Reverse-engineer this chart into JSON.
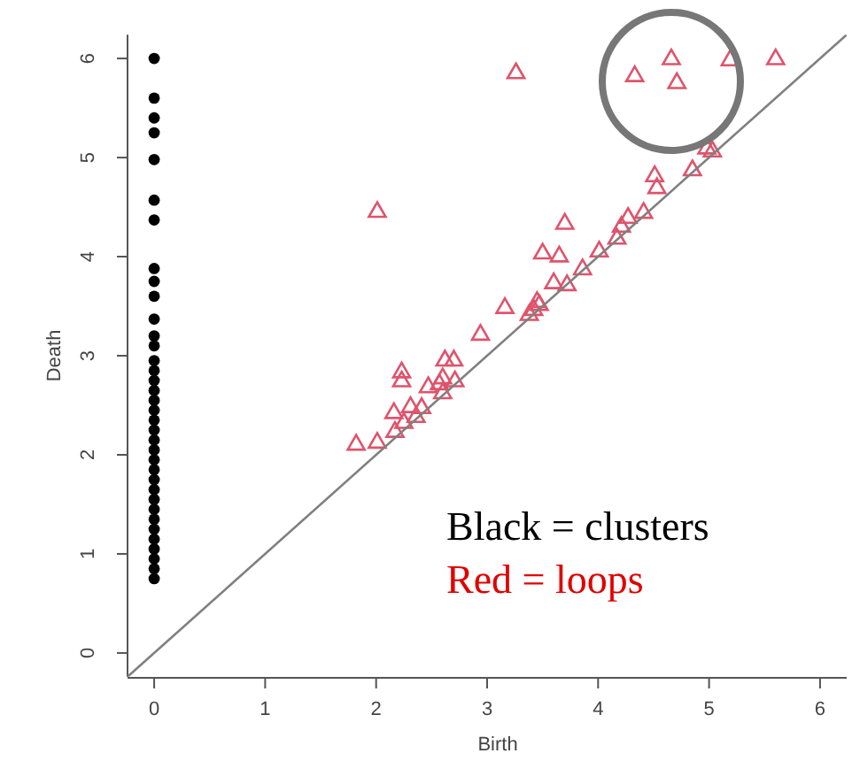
{
  "chart_data": {
    "type": "scatter",
    "xlabel": "Birth",
    "ylabel": "Death",
    "xlim": [
      -0.24,
      6.24
    ],
    "ylim": [
      -0.24,
      6.24
    ],
    "xticks": [
      0,
      1,
      2,
      3,
      4,
      5,
      6
    ],
    "yticks": [
      0,
      1,
      2,
      3,
      4,
      5,
      6
    ],
    "grid": false,
    "annotations": [
      "Black = clusters",
      "Red = loops"
    ],
    "series": [
      {
        "color": "#000000",
        "marker": "circle",
        "x": [
          0,
          0,
          0,
          0,
          0,
          0,
          0,
          0,
          0,
          0,
          0,
          0,
          0,
          0,
          0,
          0,
          0,
          0,
          0,
          0,
          0,
          0,
          0,
          0,
          0,
          0,
          0,
          0,
          0,
          0,
          0,
          0,
          0,
          0,
          0,
          0
        ],
        "values": [
          0.75,
          0.85,
          0.95,
          1.05,
          1.15,
          1.25,
          1.35,
          1.45,
          1.55,
          1.65,
          1.75,
          1.85,
          1.95,
          2.05,
          2.15,
          2.25,
          2.35,
          2.45,
          2.55,
          2.65,
          2.75,
          2.85,
          2.95,
          3.1,
          3.2,
          3.37,
          3.6,
          3.75,
          3.88,
          4.37,
          4.57,
          4.98,
          5.25,
          5.4,
          5.6,
          6.0
        ]
      },
      {
        "color": "#df536b",
        "marker": "triangle",
        "x": [
          3.26,
          4.33,
          4.66,
          4.71,
          5.19,
          5.6,
          5.03,
          4.98,
          4.85,
          4.51,
          4.53,
          2.01,
          3.7,
          4.41,
          4.27,
          4.21,
          4.17,
          3.5,
          3.65,
          4.01,
          3.86,
          3.6,
          3.72,
          3.16,
          3.45,
          3.38,
          3.42,
          3.47,
          2.94,
          2.23,
          2.23,
          2.62,
          2.7,
          2.47,
          2.6,
          2.71,
          2.57,
          2.6,
          2.16,
          2.31,
          2.41,
          2.36,
          2.25,
          2.17,
          1.82,
          2.01
        ],
        "values": [
          5.86,
          5.83,
          6.0,
          5.76,
          5.99,
          6.0,
          5.07,
          5.1,
          4.88,
          4.82,
          4.7,
          4.46,
          4.34,
          4.45,
          4.4,
          4.31,
          4.19,
          4.04,
          4.01,
          4.06,
          3.88,
          3.74,
          3.72,
          3.49,
          3.55,
          3.42,
          3.47,
          3.52,
          3.22,
          2.84,
          2.75,
          2.96,
          2.96,
          2.69,
          2.78,
          2.75,
          2.72,
          2.63,
          2.43,
          2.49,
          2.48,
          2.39,
          2.33,
          2.24,
          2.11,
          2.13
        ]
      },
      {
        "type": "line",
        "color": "#808080",
        "marker": "none",
        "x": [
          -0.24,
          6.24
        ],
        "values": [
          -0.24,
          6.24
        ]
      }
    ]
  }
}
